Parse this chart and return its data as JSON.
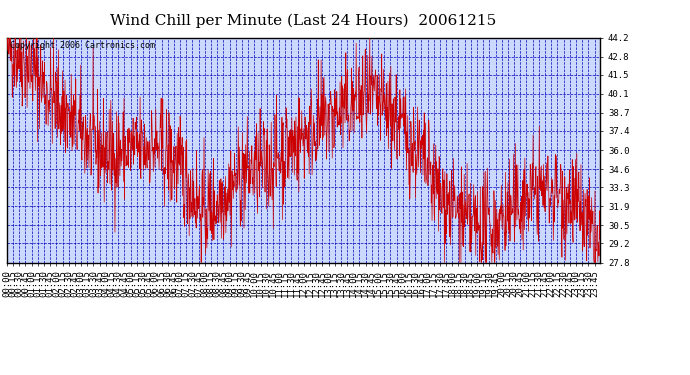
{
  "title": "Wind Chill per Minute (Last 24 Hours)  20061215",
  "copyright": "Copyright 2006 Cartronics.com",
  "ylabel_values": [
    27.8,
    29.2,
    30.5,
    31.9,
    33.3,
    34.6,
    36.0,
    37.4,
    38.7,
    40.1,
    41.5,
    42.8,
    44.2
  ],
  "ytick_labels": [
    "44.2",
    "42.8",
    "41.5",
    "40.1",
    "38.7",
    "37.4",
    "36.0",
    "34.6",
    "33.3",
    "31.9",
    "30.5",
    "29.2",
    "27.8"
  ],
  "ymin": 27.8,
  "ymax": 44.2,
  "line_color": "#cc0000",
  "bg_color": "#ffffff",
  "plot_bg_color": "#ccd9ff",
  "grid_color": "#0000bb",
  "border_color": "#000000",
  "title_color": "#000000",
  "title_fontsize": 11,
  "copyright_fontsize": 6,
  "tick_fontsize": 6.5,
  "xtick_interval_minutes": 15,
  "total_minutes": 1440
}
